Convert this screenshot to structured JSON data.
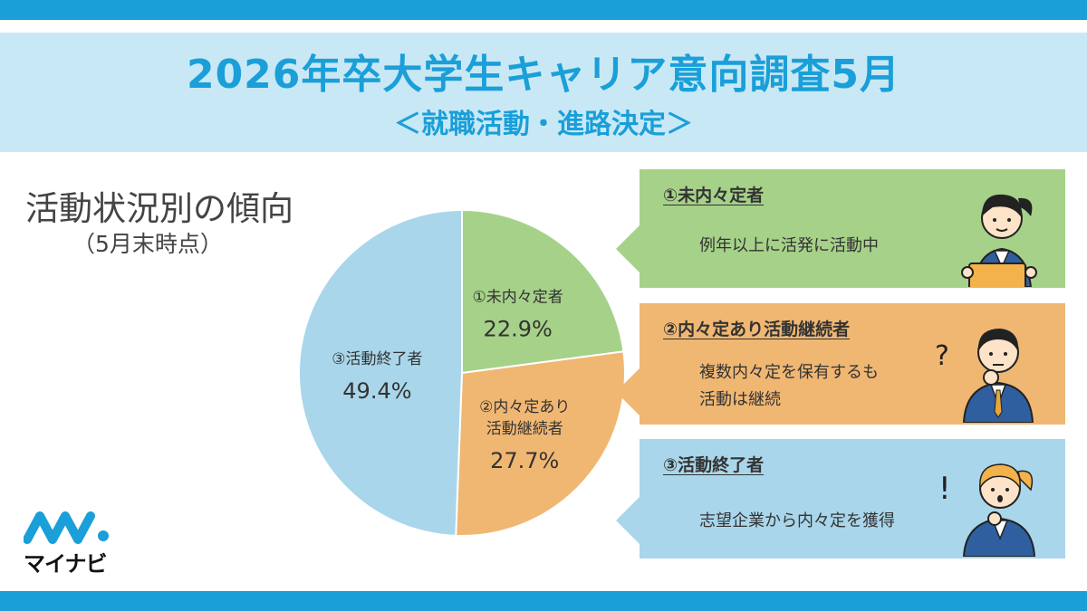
{
  "header": {
    "title": "2026年卒大学生キャリア意向調査5月",
    "subtitle": "＜就職活動・進路決定＞"
  },
  "section": {
    "title": "活動状況別の傾向",
    "subtitle": "（5月末時点）"
  },
  "chart_data": {
    "type": "pie",
    "slices": [
      {
        "label": "①未内々定者",
        "value": 22.9,
        "value_label": "22.9%",
        "color": "#a6d189"
      },
      {
        "label": "②内々定あり活動継続者",
        "label_lines": [
          "②内々定あり",
          "活動継続者"
        ],
        "value": 27.7,
        "value_label": "27.7%",
        "color": "#f0b773"
      },
      {
        "label": "③活動終了者",
        "value": 49.4,
        "value_label": "49.4%",
        "color": "#a9d6ea"
      }
    ]
  },
  "cards": [
    {
      "heading": "①未内々定者",
      "desc": [
        "例年以上に活発に活動中"
      ],
      "color": "#a6d189"
    },
    {
      "heading": "②内々定あり活動継続者",
      "desc": [
        "複数内々定を保有するも",
        "活動は継続"
      ],
      "color": "#f0b773"
    },
    {
      "heading": "③活動終了者",
      "desc": [
        "志望企業から内々定を獲得"
      ],
      "color": "#a9d6ea"
    }
  ],
  "logo": {
    "text": "マイナビ"
  },
  "icons": [
    "woman-with-tablet-icon",
    "thinking-man-icon",
    "surprised-woman-icon",
    "mynavi-logo-icon"
  ]
}
